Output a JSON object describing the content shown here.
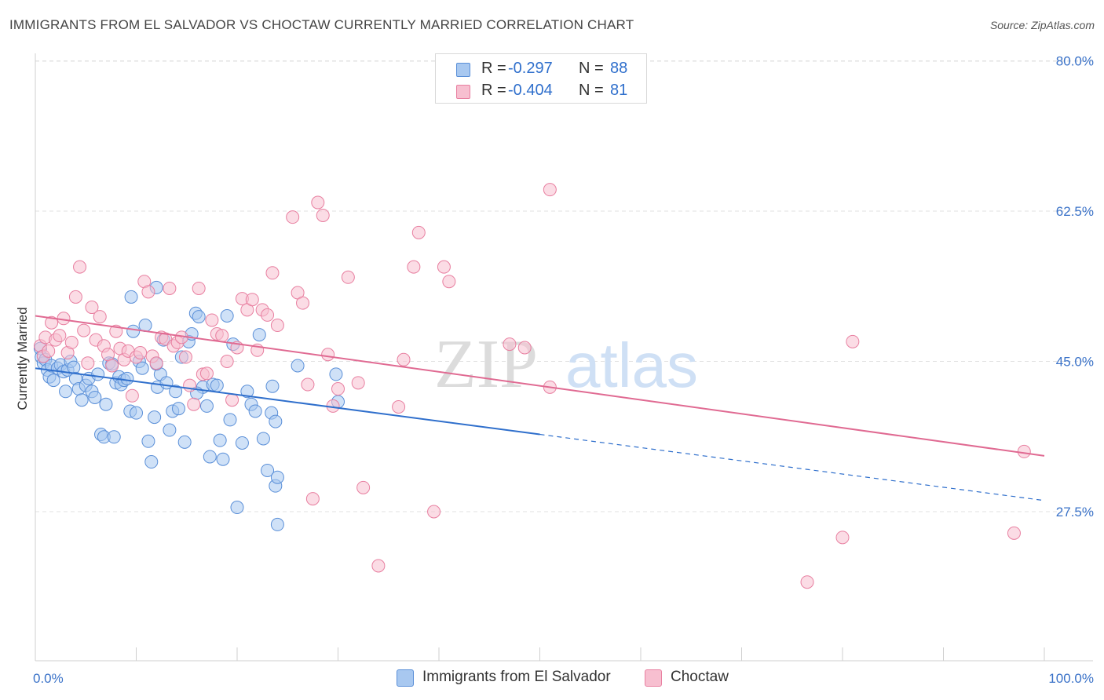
{
  "header": {
    "title": "IMMIGRANTS FROM EL SALVADOR VS CHOCTAW CURRENTLY MARRIED CORRELATION CHART",
    "source": "Source: ZipAtlas.com"
  },
  "watermark": {
    "zip": "ZIP",
    "atlas": "atlas"
  },
  "legend_top": {
    "rows": [
      {
        "r_label": "R =",
        "r_value": "-0.297",
        "n_label": "N =",
        "n_value": "88"
      },
      {
        "r_label": "R =",
        "r_value": "-0.404",
        "n_label": "N =",
        "n_value": "81"
      }
    ]
  },
  "legend_bottom": {
    "series0": "Immigrants from El Salvador",
    "series1": "Choctaw"
  },
  "colors": {
    "blue_fill": "#a8c8f0",
    "blue_stroke": "#5a8fd8",
    "blue_line": "#2f6fcc",
    "pink_fill": "#f7bfd0",
    "pink_stroke": "#e87fa0",
    "pink_line": "#e06a92",
    "tick_label": "#3a72c8",
    "grid": "#e2e2e2"
  },
  "chart_data": {
    "type": "scatter",
    "title": "IMMIGRANTS FROM EL SALVADOR VS CHOCTAW CURRENTLY MARRIED CORRELATION CHART",
    "xlabel": "",
    "ylabel": "Currently Married",
    "xlim": [
      0,
      100
    ],
    "ylim": [
      10,
      85
    ],
    "x_tick_labels": [
      {
        "value": 0,
        "label": "0.0%"
      },
      {
        "value": 100,
        "label": "100.0%"
      }
    ],
    "y_ticks": [
      {
        "value": 27.5,
        "label": "27.5%"
      },
      {
        "value": 45.0,
        "label": "45.0%"
      },
      {
        "value": 62.5,
        "label": "62.5%"
      },
      {
        "value": 80.0,
        "label": "80.0%"
      }
    ],
    "grid": true,
    "legend_position": "bottom",
    "series": [
      {
        "name": "Immigrants from El Salvador",
        "r": -0.297,
        "n": 88,
        "trend": {
          "x0": 0,
          "y0": 44.2,
          "x1": 50,
          "y1": 36.5,
          "dashed_x1": 100,
          "dashed_y1": 28.8
        },
        "points": [
          [
            0.5,
            46.5
          ],
          [
            0.6,
            45.5
          ],
          [
            0.8,
            44.8
          ],
          [
            1.0,
            45.2
          ],
          [
            1.2,
            44.0
          ],
          [
            1.4,
            43.2
          ],
          [
            1.6,
            44.5
          ],
          [
            1.8,
            42.8
          ],
          [
            2.2,
            44.2
          ],
          [
            2.5,
            44.6
          ],
          [
            2.8,
            43.8
          ],
          [
            3.0,
            41.5
          ],
          [
            3.2,
            44.0
          ],
          [
            3.5,
            45.0
          ],
          [
            3.8,
            44.3
          ],
          [
            4.0,
            43.0
          ],
          [
            4.3,
            41.8
          ],
          [
            4.6,
            40.5
          ],
          [
            5.0,
            42.2
          ],
          [
            5.3,
            43.0
          ],
          [
            5.6,
            41.5
          ],
          [
            5.9,
            40.8
          ],
          [
            6.2,
            43.5
          ],
          [
            6.5,
            36.5
          ],
          [
            6.8,
            36.2
          ],
          [
            7.0,
            40.0
          ],
          [
            7.3,
            44.8
          ],
          [
            7.6,
            44.7
          ],
          [
            7.8,
            36.2
          ],
          [
            8.0,
            42.5
          ],
          [
            8.3,
            43.2
          ],
          [
            8.5,
            42.3
          ],
          [
            8.8,
            42.8
          ],
          [
            9.1,
            43.0
          ],
          [
            9.4,
            39.2
          ],
          [
            9.7,
            48.5
          ],
          [
            10.0,
            39.0
          ],
          [
            10.3,
            45.0
          ],
          [
            10.6,
            44.2
          ],
          [
            10.9,
            49.2
          ],
          [
            11.2,
            35.7
          ],
          [
            11.5,
            33.3
          ],
          [
            11.8,
            38.5
          ],
          [
            12.1,
            42.0
          ],
          [
            12.4,
            43.5
          ],
          [
            12.7,
            47.5
          ],
          [
            13.0,
            42.5
          ],
          [
            13.3,
            37.0
          ],
          [
            13.6,
            39.2
          ],
          [
            13.9,
            41.5
          ],
          [
            14.2,
            39.5
          ],
          [
            14.5,
            45.5
          ],
          [
            14.8,
            35.6
          ],
          [
            15.2,
            47.3
          ],
          [
            15.5,
            48.2
          ],
          [
            15.9,
            50.6
          ],
          [
            16.2,
            50.2
          ],
          [
            16.6,
            42.0
          ],
          [
            17.0,
            39.8
          ],
          [
            17.3,
            33.9
          ],
          [
            17.6,
            42.3
          ],
          [
            18.0,
            42.2
          ],
          [
            18.3,
            35.8
          ],
          [
            18.6,
            33.6
          ],
          [
            19.0,
            50.3
          ],
          [
            19.3,
            38.2
          ],
          [
            19.6,
            47.0
          ],
          [
            20.0,
            28.0
          ],
          [
            20.5,
            35.5
          ],
          [
            21.0,
            41.5
          ],
          [
            21.4,
            40.0
          ],
          [
            21.8,
            39.2
          ],
          [
            22.2,
            48.1
          ],
          [
            22.6,
            36.0
          ],
          [
            23.0,
            32.3
          ],
          [
            23.4,
            39.0
          ],
          [
            23.8,
            38.0
          ],
          [
            9.5,
            52.5
          ],
          [
            12.0,
            53.6
          ],
          [
            16.0,
            41.3
          ],
          [
            12.0,
            44.7
          ],
          [
            24.0,
            26.0
          ],
          [
            23.5,
            42.1
          ],
          [
            23.8,
            30.5
          ],
          [
            24.0,
            31.5
          ],
          [
            26.0,
            44.5
          ],
          [
            29.8,
            43.5
          ],
          [
            30.0,
            40.3
          ]
        ]
      },
      {
        "name": "Choctaw",
        "r": -0.404,
        "n": 81,
        "trend": {
          "x0": 0,
          "y0": 50.3,
          "x1": 100,
          "y1": 34.0
        },
        "points": [
          [
            0.5,
            46.8
          ],
          [
            0.8,
            45.6
          ],
          [
            1.0,
            47.8
          ],
          [
            1.3,
            46.2
          ],
          [
            1.6,
            49.5
          ],
          [
            2.0,
            47.5
          ],
          [
            2.4,
            48.0
          ],
          [
            2.8,
            50.0
          ],
          [
            3.2,
            46.0
          ],
          [
            3.6,
            47.2
          ],
          [
            4.0,
            52.5
          ],
          [
            4.4,
            56.0
          ],
          [
            4.8,
            48.6
          ],
          [
            5.2,
            44.8
          ],
          [
            5.6,
            51.3
          ],
          [
            6.0,
            47.5
          ],
          [
            6.4,
            50.2
          ],
          [
            6.8,
            46.8
          ],
          [
            7.2,
            45.8
          ],
          [
            7.6,
            44.5
          ],
          [
            8.0,
            48.5
          ],
          [
            8.4,
            46.5
          ],
          [
            8.8,
            45.2
          ],
          [
            9.2,
            46.2
          ],
          [
            9.6,
            41.0
          ],
          [
            10.0,
            45.5
          ],
          [
            10.4,
            46.0
          ],
          [
            10.8,
            54.3
          ],
          [
            11.2,
            53.1
          ],
          [
            11.6,
            45.6
          ],
          [
            12.0,
            44.8
          ],
          [
            12.5,
            47.8
          ],
          [
            12.9,
            47.6
          ],
          [
            13.3,
            53.5
          ],
          [
            13.7,
            46.8
          ],
          [
            14.1,
            47.2
          ],
          [
            14.5,
            47.8
          ],
          [
            14.9,
            45.5
          ],
          [
            15.3,
            42.2
          ],
          [
            15.7,
            40.0
          ],
          [
            16.2,
            53.5
          ],
          [
            16.6,
            43.5
          ],
          [
            17.0,
            43.6
          ],
          [
            17.5,
            49.8
          ],
          [
            18.0,
            48.2
          ],
          [
            18.5,
            48.0
          ],
          [
            19.0,
            45.0
          ],
          [
            19.5,
            40.5
          ],
          [
            20.0,
            46.6
          ],
          [
            20.5,
            52.3
          ],
          [
            21.0,
            51.0
          ],
          [
            21.5,
            52.2
          ],
          [
            22.0,
            46.3
          ],
          [
            22.5,
            51.0
          ],
          [
            23.0,
            50.4
          ],
          [
            23.5,
            55.3
          ],
          [
            24.0,
            49.2
          ],
          [
            25.5,
            61.8
          ],
          [
            26.0,
            53.0
          ],
          [
            26.5,
            51.8
          ],
          [
            27.0,
            42.3
          ],
          [
            27.5,
            29.0
          ],
          [
            28.0,
            63.5
          ],
          [
            28.5,
            62.0
          ],
          [
            29.0,
            45.8
          ],
          [
            29.5,
            39.8
          ],
          [
            30.0,
            41.8
          ],
          [
            31.0,
            54.8
          ],
          [
            32.0,
            42.5
          ],
          [
            32.5,
            30.3
          ],
          [
            34.0,
            21.2
          ],
          [
            36.0,
            39.7
          ],
          [
            36.5,
            45.2
          ],
          [
            37.5,
            56.0
          ],
          [
            38.0,
            60.0
          ],
          [
            39.5,
            27.5
          ],
          [
            40.5,
            56.0
          ],
          [
            41.0,
            54.3
          ],
          [
            47.0,
            47.0
          ],
          [
            48.5,
            46.6
          ],
          [
            51.0,
            65.0
          ]
        ],
        "points_extra": [
          [
            51.0,
            42.0
          ],
          [
            80.0,
            24.5
          ],
          [
            81.0,
            47.3
          ],
          [
            97.0,
            25.0
          ],
          [
            98.0,
            34.5
          ],
          [
            76.5,
            19.3
          ]
        ]
      }
    ]
  }
}
